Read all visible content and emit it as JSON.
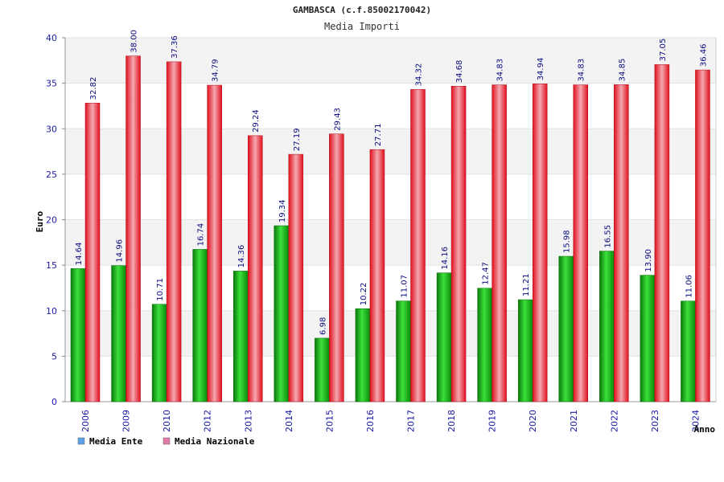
{
  "chart_data": {
    "type": "bar",
    "title": "GAMBASCA (c.f.85002170042)",
    "subtitle": "Media Importi",
    "xlabel": "Anno",
    "ylabel": "Euro",
    "ylim": [
      0,
      40
    ],
    "yticks": [
      0,
      5,
      10,
      15,
      20,
      25,
      30,
      35,
      40
    ],
    "grid": true,
    "legend_position": "bottom-left",
    "categories": [
      "2006",
      "2009",
      "2010",
      "2012",
      "2013",
      "2014",
      "2015",
      "2016",
      "2017",
      "2018",
      "2019",
      "2020",
      "2021",
      "2022",
      "2023",
      "2024"
    ],
    "series": [
      {
        "name": "Media Ente",
        "color": "#18b018",
        "legend_color": "#5aa0e8",
        "values": [
          14.64,
          14.96,
          10.71,
          16.74,
          14.36,
          19.34,
          6.98,
          10.22,
          11.07,
          14.16,
          12.47,
          11.21,
          15.98,
          16.55,
          13.9,
          11.06
        ],
        "labels": [
          "14.64",
          "14.96",
          "10.71",
          "16.74",
          "14.36",
          "19.34",
          "6.98",
          "10.22",
          "11.07",
          "14.16",
          "12.47",
          "11.21",
          "15.98",
          "16.55",
          "13.90",
          "11.06"
        ]
      },
      {
        "name": "Media Nazionale",
        "color": "#e41c2c",
        "legend_color": "#e07aa8",
        "values": [
          32.82,
          38.0,
          37.36,
          34.79,
          29.24,
          27.19,
          29.43,
          27.71,
          34.32,
          34.68,
          34.83,
          34.94,
          34.83,
          34.85,
          37.05,
          36.46
        ],
        "labels": [
          "32.82",
          "38.00",
          "37.36",
          "34.79",
          "29.24",
          "27.19",
          "29.43",
          "27.71",
          "34.32",
          "34.68",
          "34.83",
          "34.94",
          "34.83",
          "34.85",
          "37.05",
          "36.46"
        ]
      }
    ]
  }
}
